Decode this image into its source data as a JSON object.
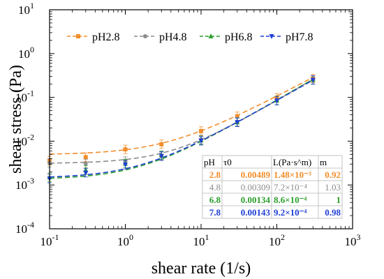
{
  "chart_data": {
    "type": "scatter",
    "xlabel": "shear rate (1/s)",
    "ylabel": "shear stress (Pa)",
    "xscale": "log",
    "yscale": "log",
    "xlim": [
      0.1,
      1000
    ],
    "ylim": [
      0.0001,
      10
    ],
    "grid": false,
    "legend_position": "top",
    "x_ticks": [
      {
        "v": 0.1,
        "base": "10",
        "exp": "-1"
      },
      {
        "v": 1,
        "base": "10",
        "exp": "0"
      },
      {
        "v": 10,
        "base": "10",
        "exp": "1"
      },
      {
        "v": 100,
        "base": "10",
        "exp": "2"
      },
      {
        "v": 1000,
        "base": "10",
        "exp": "3"
      }
    ],
    "y_ticks": [
      {
        "v": 0.0001,
        "base": "10",
        "exp": "-4"
      },
      {
        "v": 0.001,
        "base": "10",
        "exp": "-3"
      },
      {
        "v": 0.01,
        "base": "10",
        "exp": "-2"
      },
      {
        "v": 0.1,
        "base": "10",
        "exp": "-1"
      },
      {
        "v": 1,
        "base": "10",
        "exp": "0"
      },
      {
        "v": 10,
        "base": "10",
        "exp": "1"
      }
    ],
    "x_points": [
      0.1,
      0.3,
      1,
      3,
      10,
      30,
      100,
      300
    ],
    "series": [
      {
        "name": "pH2.8",
        "color": "#f28e2b",
        "marker": "square",
        "values": [
          0.0036,
          0.0043,
          0.0065,
          0.0085,
          0.017,
          0.037,
          0.098,
          0.27
        ],
        "fit": {
          "tau0": 0.00489,
          "L": 0.00148,
          "m": 0.92
        }
      },
      {
        "name": "pH4.8",
        "color": "#8c8c8c",
        "marker": "circle",
        "values": [
          0.0032,
          0.0031,
          0.0035,
          0.0045,
          0.011,
          0.028,
          0.085,
          0.25
        ],
        "fit": {
          "tau0": 0.00309,
          "L": 0.00072,
          "m": 1.03
        }
      },
      {
        "name": "pH6.8",
        "color": "#2ca02c",
        "marker": "triangle-up",
        "values": [
          0.0015,
          0.0022,
          0.0031,
          0.0048,
          0.0105,
          0.027,
          0.085,
          0.25
        ],
        "fit": {
          "tau0": 0.00134,
          "L": 0.00086,
          "m": 1
        }
      },
      {
        "name": "pH7.8",
        "color": "#1f3fd6",
        "marker": "triangle-down",
        "values": [
          0.0014,
          0.0019,
          0.0029,
          0.0046,
          0.0102,
          0.027,
          0.084,
          0.25
        ],
        "fit": {
          "tau0": 0.00143,
          "L": 0.00092,
          "m": 0.98
        }
      }
    ],
    "table": {
      "headers": [
        "pH",
        "τ0",
        "L(Pa·s^m)",
        "m"
      ],
      "rows": [
        {
          "ph": "2.8",
          "tau0": "0.00489",
          "L": "1.48×10⁻³",
          "m": "0.92",
          "color": "#f28e2b"
        },
        {
          "ph": "4.8",
          "tau0": "0.00309",
          "L": "7.2×10⁻⁴",
          "m": "1.03",
          "color": "#8c8c8c"
        },
        {
          "ph": "6.8",
          "tau0": "0.00134",
          "L": "8.6×10⁻⁴",
          "m": "1",
          "color": "#2ca02c"
        },
        {
          "ph": "7.8",
          "tau0": "0.00143",
          "L": "9.2×10⁻⁴",
          "m": "0.98",
          "color": "#1f3fd6"
        }
      ]
    }
  }
}
